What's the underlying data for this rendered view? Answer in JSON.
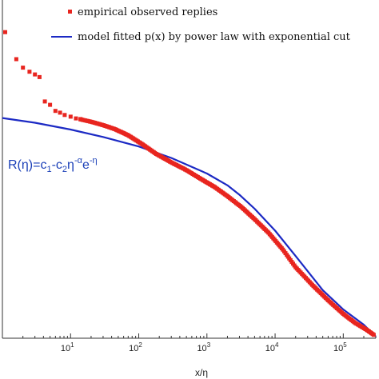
{
  "chart_data": {
    "type": "scatter",
    "xscale": "log",
    "xlim": [
      1,
      300000
    ],
    "ylim": [
      0,
      1
    ],
    "xlabel": "x/η",
    "ylabel": "",
    "grid": false,
    "legend_position": "top-right",
    "x_ticks": [
      {
        "base": "10",
        "exp": "1",
        "value": 10
      },
      {
        "base": "10",
        "exp": "2",
        "value": 100
      },
      {
        "base": "10",
        "exp": "3",
        "value": 1000
      },
      {
        "base": "10",
        "exp": "4",
        "value": 10000
      },
      {
        "base": "10",
        "exp": "5",
        "value": 100000
      }
    ],
    "annotation": {
      "text_main": "R(η)=c",
      "sub1": "1",
      "mid": "-c",
      "sub2": "2",
      "eta": "η",
      "sup1": "-α",
      "e": "e",
      "sup2": "-η"
    },
    "series": [
      {
        "name": "empirical observed replies",
        "color": "#e8251f",
        "marker": "square",
        "points": [
          [
            1.1,
            0.905
          ],
          [
            1.6,
            0.825
          ],
          [
            2.0,
            0.8
          ],
          [
            2.5,
            0.788
          ],
          [
            3.0,
            0.78
          ],
          [
            3.5,
            0.772
          ],
          [
            4.2,
            0.7
          ],
          [
            5.0,
            0.69
          ],
          [
            6.0,
            0.672
          ],
          [
            7.0,
            0.667
          ],
          [
            8.2,
            0.66
          ],
          [
            10.0,
            0.655
          ],
          [
            12.0,
            0.65
          ],
          [
            14.0,
            0.648
          ]
        ],
        "curve": [
          [
            14,
            0.647
          ],
          [
            20,
            0.64
          ],
          [
            30,
            0.63
          ],
          [
            45,
            0.618
          ],
          [
            70,
            0.6
          ],
          [
            110,
            0.575
          ],
          [
            180,
            0.545
          ],
          [
            300,
            0.52
          ],
          [
            500,
            0.497
          ],
          [
            800,
            0.472
          ],
          [
            1300,
            0.447
          ],
          [
            2000,
            0.42
          ],
          [
            3200,
            0.388
          ],
          [
            5000,
            0.352
          ],
          [
            8000,
            0.312
          ],
          [
            13000,
            0.262
          ],
          [
            20000,
            0.21
          ],
          [
            35000,
            0.158
          ],
          [
            60000,
            0.112
          ],
          [
            100000,
            0.072
          ],
          [
            150000,
            0.045
          ],
          [
            220000,
            0.025
          ],
          [
            280000,
            0.01
          ]
        ]
      },
      {
        "name": "model fitted p(x) by power law with exponential cut",
        "color": "#1c2ac4",
        "marker": "line",
        "points": [
          [
            1.0,
            0.651
          ],
          [
            3.0,
            0.637
          ],
          [
            10.0,
            0.617
          ],
          [
            30.0,
            0.595
          ],
          [
            100.0,
            0.567
          ],
          [
            300.0,
            0.533
          ],
          [
            1000.0,
            0.487
          ],
          [
            2000.0,
            0.452
          ],
          [
            3000.0,
            0.424
          ],
          [
            5000.0,
            0.383
          ],
          [
            10000.0,
            0.318
          ],
          [
            20000.0,
            0.243
          ],
          [
            50000.0,
            0.142
          ],
          [
            100000.0,
            0.085
          ],
          [
            200000.0,
            0.04
          ],
          [
            300000.0,
            0.005
          ]
        ]
      }
    ]
  }
}
